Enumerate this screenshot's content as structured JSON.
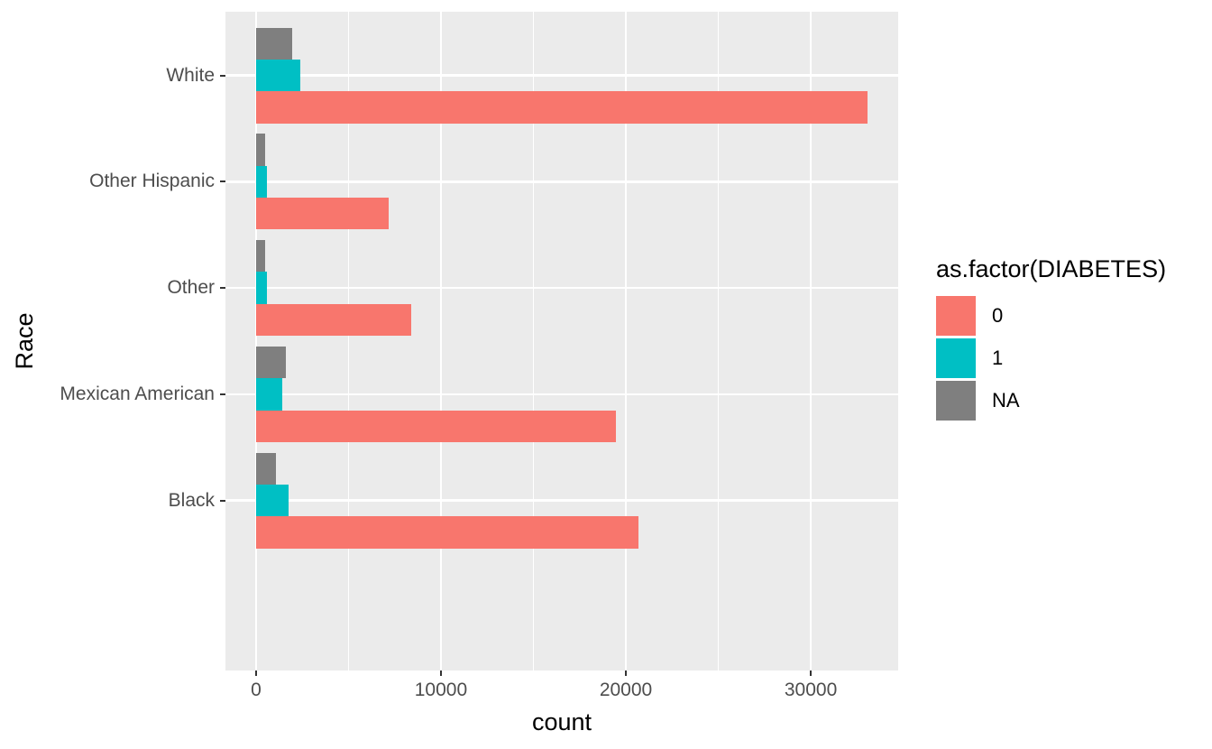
{
  "figure": {
    "background": "#FFFFFF",
    "panel_bg": "#EBEBEB",
    "grid_color": "#FFFFFF",
    "tick_color": "#333333",
    "axis_text_color": "#4D4D4D",
    "title_text_color": "#000000"
  },
  "chart_data": {
    "type": "bar",
    "orientation": "horizontal",
    "title": "",
    "xlabel": "count",
    "ylabel": "Race",
    "categories": [
      "White",
      "Other Hispanic",
      "Other",
      "Mexican American",
      "Black"
    ],
    "series": [
      {
        "name": "0",
        "color": "#F8766D",
        "values": [
          33050,
          7150,
          8400,
          19450,
          20700
        ]
      },
      {
        "name": "1",
        "color": "#00BFC4",
        "values": [
          2400,
          600,
          600,
          1400,
          1750
        ]
      },
      {
        "name": "NA",
        "color": "#7F7F7F",
        "values": [
          1950,
          500,
          500,
          1600,
          1100
        ]
      }
    ],
    "bar_order_top_to_bottom": [
      "NA",
      "1",
      "0"
    ],
    "x_ticks": [
      0,
      10000,
      20000,
      30000
    ],
    "x_tick_labels": [
      "0",
      "10000",
      "20000",
      "30000"
    ],
    "x_minor_ticks": [
      5000,
      15000,
      25000
    ],
    "xlim": [
      -1654,
      34727
    ],
    "grid": "major-white-on-grey",
    "legend": {
      "position": "right",
      "title": "as.factor(DIABETES)",
      "entries": [
        {
          "label": "0",
          "color": "#F8766D"
        },
        {
          "label": "1",
          "color": "#00BFC4"
        },
        {
          "label": "NA",
          "color": "#7F7F7F"
        }
      ]
    }
  }
}
